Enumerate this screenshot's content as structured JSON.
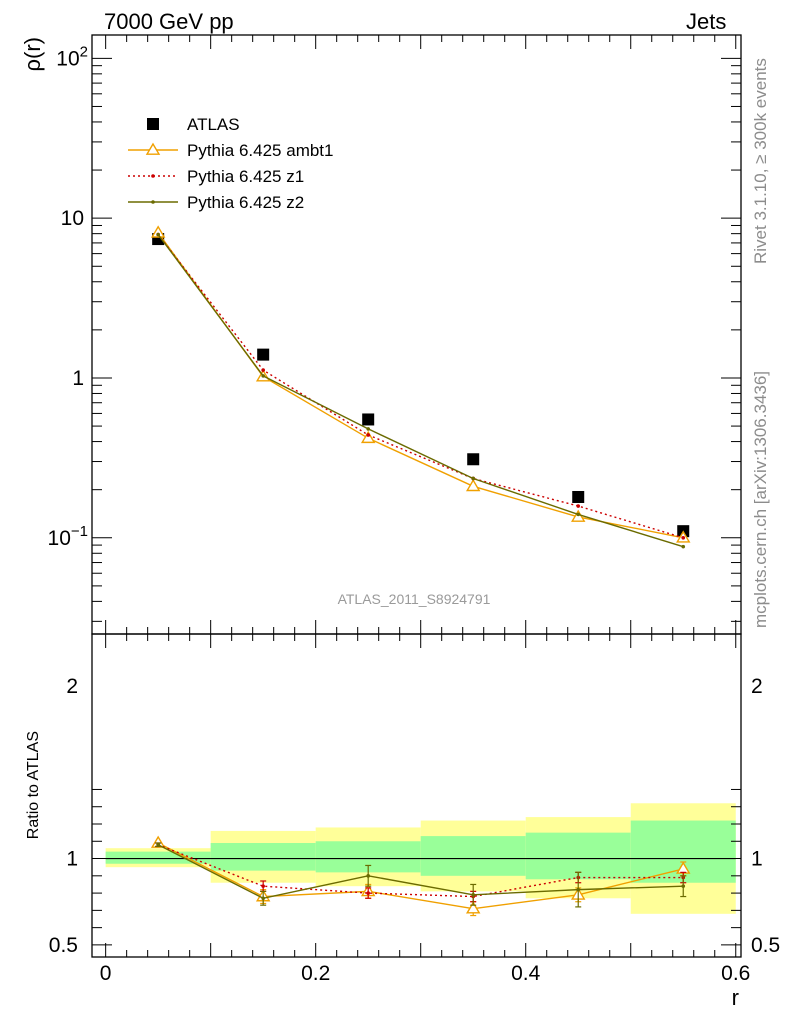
{
  "header": {
    "left": "7000 GeV pp",
    "right": "Jets"
  },
  "side_labels": {
    "rivet": "Rivet 3.1.10, ≥ 300k events",
    "mcplots": "mcplots.cern.ch [arXiv:1306.3436]"
  },
  "watermark": "ATLAS_2011_S8924791",
  "chart_data": [
    {
      "type": "scatter",
      "panel": "main",
      "ylabel": "ρ(r)",
      "yscale": "log",
      "ylim": [
        0.025,
        140
      ],
      "xlim": [
        -0.013,
        0.605
      ],
      "y_ticks": [
        {
          "v": 0.1,
          "l": "10",
          "sup": "−1"
        },
        {
          "v": 1,
          "l": "1",
          "sup": ""
        },
        {
          "v": 10,
          "l": "10",
          "sup": ""
        },
        {
          "v": 100,
          "l": "10",
          "sup": "2"
        }
      ],
      "legend_position": "top-left",
      "x": [
        0.05,
        0.15,
        0.25,
        0.35,
        0.45,
        0.55
      ],
      "series": [
        {
          "name": "ATLAS",
          "style": "square-marker",
          "color": "#000000",
          "values": [
            7.4,
            1.4,
            0.55,
            0.31,
            0.18,
            0.11
          ]
        },
        {
          "name": "Pythia 6.425 ambt1",
          "style": "solid-triangle",
          "color": "#f0a000",
          "values": [
            8.1,
            1.02,
            0.42,
            0.21,
            0.135,
            0.1
          ]
        },
        {
          "name": "Pythia 6.425 z1",
          "style": "dotted",
          "color": "#cc0000",
          "values": [
            7.9,
            1.12,
            0.44,
            0.235,
            0.158,
            0.1
          ]
        },
        {
          "name": "Pythia 6.425 z2",
          "style": "solid",
          "color": "#6b6b00",
          "values": [
            7.9,
            1.03,
            0.48,
            0.235,
            0.14,
            0.088
          ]
        }
      ]
    },
    {
      "type": "line",
      "panel": "ratio",
      "ylabel": "Ratio to ATLAS",
      "xlabel": "r",
      "ylim": [
        0.43,
        2.3
      ],
      "xlim": [
        -0.013,
        0.605
      ],
      "x_ticks": [
        {
          "v": 0,
          "l": "0"
        },
        {
          "v": 0.2,
          "l": "0.2"
        },
        {
          "v": 0.4,
          "l": "0.4"
        },
        {
          "v": 0.6,
          "l": "0.6"
        }
      ],
      "y_ticks": [
        {
          "v": 0.5,
          "l": "0.5"
        },
        {
          "v": 1,
          "l": "1"
        },
        {
          "v": 2,
          "l": "2"
        }
      ],
      "bins": [
        [
          0,
          0.1
        ],
        [
          0.1,
          0.2
        ],
        [
          0.2,
          0.3
        ],
        [
          0.3,
          0.4
        ],
        [
          0.4,
          0.5
        ],
        [
          0.5,
          0.6
        ]
      ],
      "band_outer": [
        [
          0.95,
          1.06
        ],
        [
          0.86,
          1.16
        ],
        [
          0.84,
          1.18
        ],
        [
          0.81,
          1.22
        ],
        [
          0.77,
          1.24
        ],
        [
          0.68,
          1.32
        ]
      ],
      "band_inner": [
        [
          0.97,
          1.04
        ],
        [
          0.93,
          1.09
        ],
        [
          0.92,
          1.1
        ],
        [
          0.9,
          1.13
        ],
        [
          0.88,
          1.15
        ],
        [
          0.86,
          1.22
        ]
      ],
      "x": [
        0.05,
        0.15,
        0.25,
        0.35,
        0.45,
        0.55
      ],
      "series": [
        {
          "name": "Pythia 6.425 ambt1",
          "color": "#f0a000",
          "values": [
            1.09,
            0.78,
            0.81,
            0.71,
            0.79,
            0.94
          ],
          "err": [
            0.01,
            0.04,
            0.04,
            0.04,
            0.04,
            0.04
          ]
        },
        {
          "name": "Pythia 6.425 z1",
          "color": "#cc0000",
          "values": [
            1.08,
            0.84,
            0.8,
            0.78,
            0.89,
            0.89
          ],
          "err": [
            0.01,
            0.03,
            0.03,
            0.03,
            0.03,
            0.03
          ]
        },
        {
          "name": "Pythia 6.425 z2",
          "color": "#6b6b00",
          "values": [
            1.08,
            0.77,
            0.9,
            0.79,
            0.82,
            0.84
          ],
          "err": [
            0.01,
            0.04,
            0.06,
            0.06,
            0.1,
            0.06
          ]
        }
      ]
    }
  ]
}
